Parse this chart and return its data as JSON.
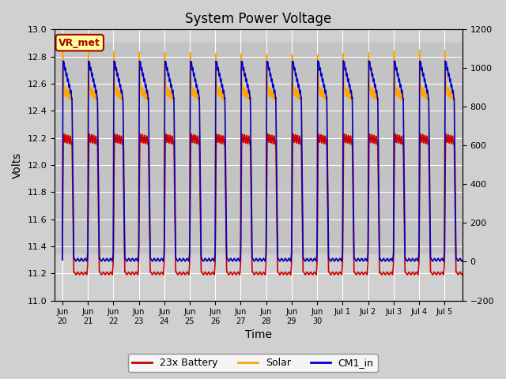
{
  "title": "System Power Voltage",
  "xlabel": "Time",
  "ylabel": "Volts",
  "ylim_left": [
    11.0,
    13.0
  ],
  "ylim_right": [
    -200,
    1200
  ],
  "xticklabels": [
    "Jun\n20",
    "Jun\n21",
    "Jun\n22",
    "Jun\n23",
    "Jun\n24",
    "Jun\n25",
    "Jun\n26",
    "Jun\n27",
    "Jun\n28",
    "Jun\n29",
    "Jun\n30",
    "Jul 1",
    "Jul 2",
    "Jul 3",
    "Jul 4",
    "Jul 5"
  ],
  "n_ticks": 16,
  "background_color": "#d0d0d0",
  "plot_bg_color": "#d0d0d0",
  "grid_color": "#ffffff",
  "line_colors": {
    "battery": "#cc0000",
    "solar": "#ffa500",
    "cm1": "#0000cc"
  },
  "line_widths": {
    "battery": 1.2,
    "solar": 1.2,
    "cm1": 1.2
  },
  "legend_labels": [
    "23x Battery",
    "Solar",
    "CM1_in"
  ],
  "annotation_text": "VR_met",
  "annotation_color": "#aa0000",
  "annotation_bg": "#ffff99",
  "annotation_border": "#aa0000",
  "n_days": 16,
  "period_day": 1.0,
  "band_low": 11.35,
  "band_high": 12.9
}
